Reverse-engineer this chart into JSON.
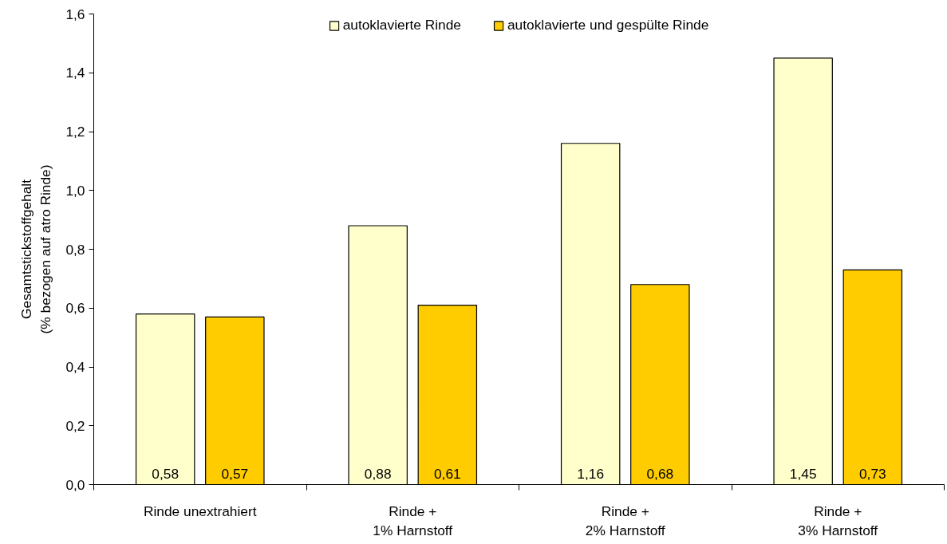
{
  "chart_data": {
    "type": "bar",
    "ylabel": "Gesamtstickstoffgehalt\n(% bezogen auf atro Rinde)",
    "categories": [
      "Rinde unextrahiert",
      "Rinde +\n1% Harnstoff",
      "Rinde +\n2% Harnstoff",
      "Rinde +\n3% Harnstoff"
    ],
    "series": [
      {
        "name": "autoklavierte Rinde",
        "color": "#ffffcc",
        "values": [
          0.58,
          0.88,
          1.16,
          1.45
        ],
        "value_labels": [
          "0,58",
          "0,88",
          "1,16",
          "1,45"
        ]
      },
      {
        "name": "autoklavierte und gespülte Rinde",
        "color": "#ffcc00",
        "values": [
          0.57,
          0.61,
          0.68,
          0.73
        ],
        "value_labels": [
          "0,57",
          "0,61",
          "0,68",
          "0,73"
        ]
      }
    ],
    "ylim": [
      0,
      1.6
    ],
    "yticks": [
      {
        "value": 0,
        "label": "0,0"
      },
      {
        "value": 0.2,
        "label": "0,2"
      },
      {
        "value": 0.4,
        "label": "0,4"
      },
      {
        "value": 0.6,
        "label": "0,6"
      },
      {
        "value": 0.8,
        "label": "0,8"
      },
      {
        "value": 1.0,
        "label": "1,0"
      },
      {
        "value": 1.2,
        "label": "1,2"
      },
      {
        "value": 1.4,
        "label": "1,4"
      },
      {
        "value": 1.6,
        "label": "1,6"
      }
    ],
    "grid": false,
    "legend": "top"
  }
}
